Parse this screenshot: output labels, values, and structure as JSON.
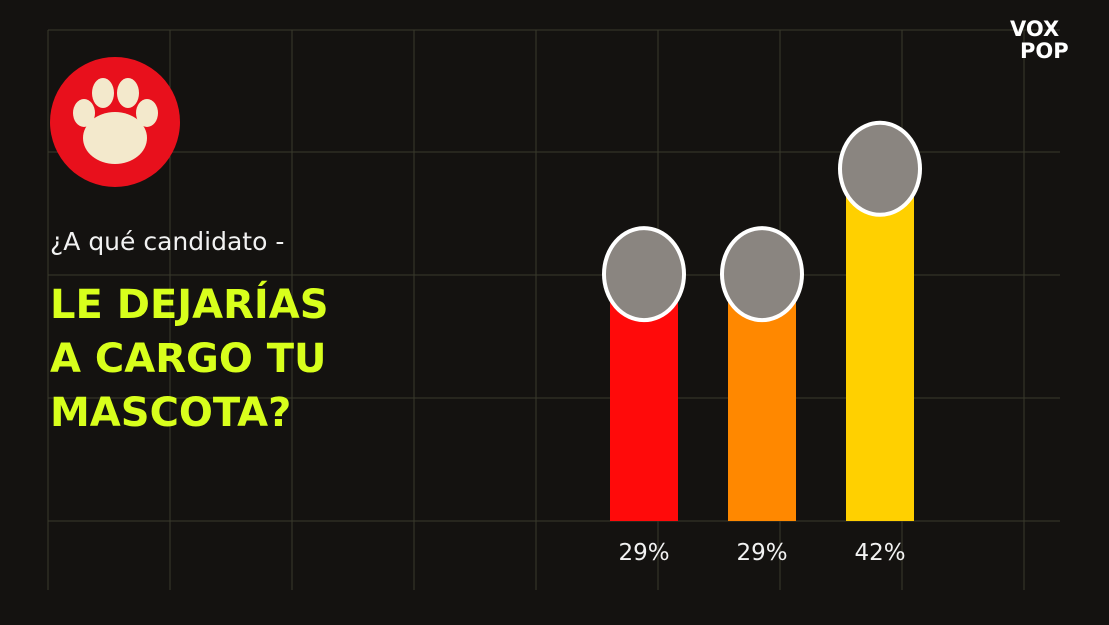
{
  "logo": {
    "line1": "VOX",
    "line2": "POP"
  },
  "chart_data": {
    "type": "bar",
    "subtitle": "¿A qué candidato -",
    "title_lines": [
      "LE DEJARÍAS",
      "A CARGO TU",
      "MASCOTA?"
    ],
    "categories": [
      null,
      null,
      null
    ],
    "values": [
      29,
      29,
      42
    ],
    "value_labels": [
      "29%",
      "29%",
      "42%"
    ],
    "colors": [
      "#ff0a0a",
      "#ff8800",
      "#ffd000"
    ]
  }
}
